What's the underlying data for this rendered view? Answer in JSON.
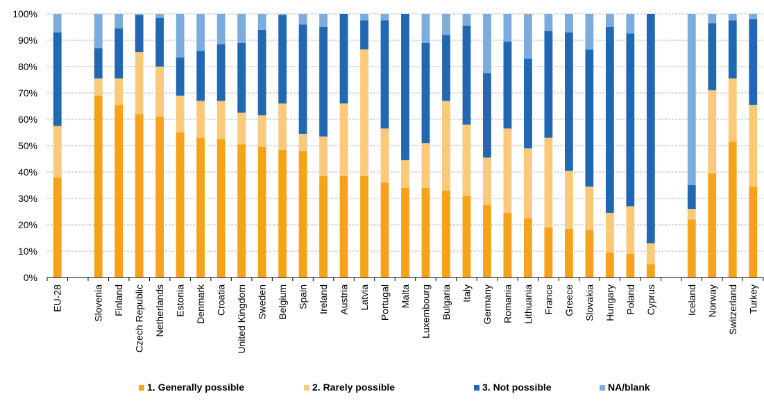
{
  "chart_data": {
    "type": "bar",
    "stacked": true,
    "percent": true,
    "title": "",
    "xlabel": "",
    "ylabel": "",
    "ylim": [
      0,
      100
    ],
    "yticks": [
      "0%",
      "10%",
      "20%",
      "30%",
      "40%",
      "50%",
      "60%",
      "70%",
      "80%",
      "90%",
      "100%"
    ],
    "grid": true,
    "legend_position": "bottom",
    "categories": [
      "EU-28",
      "Slovenia",
      "Finland",
      "Czech Republic",
      "Netherlands",
      "Estonia",
      "Denmark",
      "Croatia",
      "United Kingdom",
      "Sweden",
      "Belgium",
      "Spain",
      "Ireland",
      "Austria",
      "Latvia",
      "Portugal",
      "Malta",
      "Luxembourg",
      "Bulgaria",
      "Italy",
      "Germany",
      "Romania",
      "Lithuania",
      "France",
      "Greece",
      "Slovakia",
      "Hungary",
      "Poland",
      "Cyprus",
      "Iceland",
      "Norway",
      "Switzerland",
      "Turkey"
    ],
    "groups_after": [
      0,
      28
    ],
    "series": [
      {
        "name": "1. Generally possible",
        "color": "#f7a21b",
        "values": [
          38,
          69,
          65.5,
          62,
          61,
          55,
          53,
          52.5,
          50.5,
          49.5,
          48.5,
          48,
          38.5,
          38.5,
          38.5,
          36,
          34,
          34,
          33,
          31,
          27.5,
          24.5,
          22.5,
          19,
          18.5,
          18,
          9.5,
          9,
          5,
          22,
          39.5,
          51.5,
          34.5
        ]
      },
      {
        "name": "2. Rarely possible",
        "color": "#fbc97a",
        "values": [
          19.5,
          6.5,
          10,
          23.5,
          19,
          14,
          14,
          14.5,
          12,
          12,
          17.5,
          6.5,
          15,
          27.5,
          48,
          20.5,
          10.5,
          17,
          34,
          27,
          18,
          32,
          26.5,
          34,
          22,
          16.5,
          15,
          18,
          8,
          4,
          31.5,
          24,
          31
        ]
      },
      {
        "name": "3. Not possible",
        "color": "#2167b1",
        "values": [
          35.5,
          11.5,
          19,
          14,
          18.5,
          14.5,
          19,
          21.5,
          26.5,
          32.5,
          33.5,
          41.5,
          41.5,
          34,
          11,
          41,
          55.5,
          38,
          25,
          37.5,
          32,
          33,
          34,
          40.5,
          52.5,
          52,
          70.5,
          65.5,
          87,
          9,
          25.5,
          22,
          32.5
        ]
      },
      {
        "name": "NA/blank",
        "color": "#7bacdc",
        "values": [
          7,
          13,
          5.5,
          0.5,
          1.5,
          16.5,
          14,
          11.5,
          11,
          6,
          0.5,
          4,
          5,
          0,
          2.5,
          2.5,
          0,
          11,
          8,
          4.5,
          22.5,
          10.5,
          17,
          6.5,
          7,
          13.5,
          5,
          7.5,
          0,
          65,
          3.5,
          2.5,
          2
        ]
      }
    ]
  }
}
